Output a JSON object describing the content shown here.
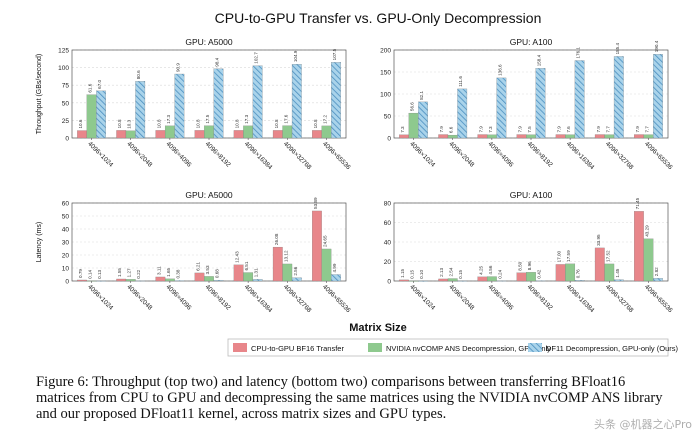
{
  "figure": {
    "title": "CPU-to-GPU Transfer vs. GPU-Only Decompression",
    "xlabel": "Matrix Size",
    "colors": {
      "cpu": "#e8868a",
      "ans": "#8ec98e",
      "df11": "#a9d3ea",
      "df11_hatch": "#4b8fc0"
    },
    "legend": [
      "CPU-to-GPU BF16 Transfer",
      "NVIDIA nvCOMP ANS Decompression, GPU-only",
      "DF11 Decompression, GPU-only (Ours)"
    ],
    "caption": "Figure 6: Throughput (top two) and latency (bottom two) comparisons between transferring BFloat16 matrices from CPU to GPU and decompressing the same matrices using the NVIDIA nvCOMP ANS library and our proposed DFloat11 kernel, across matrix sizes and GPU types.",
    "watermark": "头条 @机器之心Pro"
  },
  "chart_data": [
    {
      "type": "bar",
      "title": "GPU: A5000",
      "ylabel": "Throughput (GBs/second)",
      "ylim": [
        0,
        125
      ],
      "yticks": [
        "0",
        "25",
        "50",
        "75",
        "100",
        "125"
      ],
      "categories": [
        "4096×1024",
        "4096×2048",
        "4096×4096",
        "4096×8192",
        "4096×16384",
        "4096×32768",
        "4096×65536"
      ],
      "series": [
        {
          "name": "CPU-to-GPU BF16 Transfer",
          "values": [
            10.6,
            10.8,
            10.8,
            10.8,
            10.8,
            10.8,
            10.8
          ],
          "labels": [
            "10.6",
            "10.8",
            "10.8",
            "10.8",
            "10.8",
            "10.8",
            "10.8"
          ]
        },
        {
          "name": "NVIDIA nvCOMP ANS Decompression, GPU-only",
          "values": [
            61.6,
            10.3,
            17.3,
            17.5,
            17.3,
            17.6,
            17.2
          ],
          "labels": [
            "61.6",
            "10.3",
            "17.3",
            "17.5",
            "17.3",
            "17.6",
            "17.2"
          ]
        },
        {
          "name": "DF11 Decompression, GPU-only (Ours)",
          "values": [
            67.0,
            80.6,
            90.9,
            98.4,
            102.7,
            104.9,
            107.5
          ],
          "labels": [
            "67.0",
            "80.6",
            "90.9",
            "98.4",
            "102.7",
            "104.9",
            "107.5"
          ]
        }
      ]
    },
    {
      "type": "bar",
      "title": "GPU: A100",
      "ylabel": "",
      "ylim": [
        0,
        200
      ],
      "yticks": [
        "0",
        "50",
        "100",
        "150",
        "200"
      ],
      "categories": [
        "4096×1024",
        "4096×2048",
        "4096×4096",
        "4096×8192",
        "4096×16384",
        "4096×32768",
        "4096×65536"
      ],
      "series": [
        {
          "name": "CPU-to-GPU BF16 Transfer",
          "values": [
            7.3,
            7.9,
            7.9,
            7.9,
            7.9,
            7.9,
            7.9
          ],
          "labels": [
            "7.3",
            "7.9",
            "7.9",
            "7.9",
            "7.9",
            "7.9",
            "7.9"
          ]
        },
        {
          "name": "NVIDIA nvCOMP ANS Decompression, GPU-only",
          "values": [
            56.6,
            6.6,
            7.3,
            7.5,
            7.6,
            7.7,
            7.7
          ],
          "labels": [
            "56.6",
            "6.6",
            "7.3",
            "7.5",
            "7.6",
            "7.7",
            "7.7"
          ]
        },
        {
          "name": "DF11 Decompression, GPU-only (Ours)",
          "values": [
            82.1,
            111.6,
            136.6,
            158.4,
            176.1,
            185.4,
            190.4
          ],
          "labels": [
            "82.1",
            "111.6",
            "136.6",
            "158.4",
            "176.1",
            "185.4",
            "190.4"
          ]
        }
      ]
    },
    {
      "type": "bar",
      "title": "GPU: A5000",
      "ylabel": "Latency (ms)",
      "ylim": [
        0,
        60
      ],
      "yticks": [
        "0",
        "10",
        "20",
        "30",
        "40",
        "50",
        "60"
      ],
      "categories": [
        "4096×1024",
        "4096×2048",
        "4096×4096",
        "4096×8192",
        "4096×16384",
        "4096×32768",
        "4096×65536"
      ],
      "series": [
        {
          "name": "CPU-to-GPU BF16 Transfer",
          "values": [
            0.79,
            1.55,
            3.11,
            6.21,
            12.43,
            26.08,
            53.89
          ],
          "labels": [
            "0.79",
            "1.55",
            "3.11",
            "6.21",
            "12.43",
            "26.08",
            "53.89"
          ]
        },
        {
          "name": "NVIDIA nvCOMP ANS Decompression, GPU-only",
          "values": [
            0.14,
            1.27,
            1.65,
            3.53,
            6.51,
            13.12,
            24.65
          ],
          "labels": [
            "0.14",
            "1.27",
            "1.65",
            "3.53",
            "6.51",
            "13.12",
            "24.65"
          ]
        },
        {
          "name": "DF11 Decompression, GPU-only (Ours)",
          "values": [
            0.13,
            0.22,
            0.38,
            0.68,
            1.31,
            2.56,
            4.99
          ],
          "labels": [
            "0.13",
            "0.22",
            "0.38",
            "0.68",
            "1.31",
            "2.56",
            "4.99"
          ]
        }
      ]
    },
    {
      "type": "bar",
      "title": "GPU: A100",
      "ylabel": "",
      "ylim": [
        0,
        80
      ],
      "yticks": [
        "0",
        "20",
        "40",
        "60",
        "80"
      ],
      "categories": [
        "4096×1024",
        "4096×2048",
        "4096×4096",
        "4096×8192",
        "4096×16384",
        "4096×32768",
        "4096×65536"
      ],
      "series": [
        {
          "name": "CPU-to-GPU BF16 Transfer",
          "values": [
            1.15,
            2.13,
            4.25,
            8.5,
            17.0,
            33.95,
            71.45
          ],
          "labels": [
            "1.15",
            "2.13",
            "4.25",
            "8.50",
            "17.00",
            "33.95",
            "71.45"
          ]
        },
        {
          "name": "NVIDIA nvCOMP ANS Decompression, GPU-only",
          "values": [
            0.15,
            2.54,
            4.56,
            8.96,
            17.59,
            17.52,
            43.29
          ],
          "labels": [
            "0.15",
            "2.54",
            "4.56",
            "8.96",
            "17.59",
            "17.52",
            "43.29"
          ]
        },
        {
          "name": "DF11 Decompression, GPU-only (Ours)",
          "values": [
            0.1,
            0.15,
            0.24,
            0.42,
            0.76,
            1.45,
            2.82
          ],
          "labels": [
            "0.10",
            "0.15",
            "0.24",
            "0.42",
            "0.76",
            "1.45",
            "2.82"
          ]
        }
      ]
    }
  ]
}
